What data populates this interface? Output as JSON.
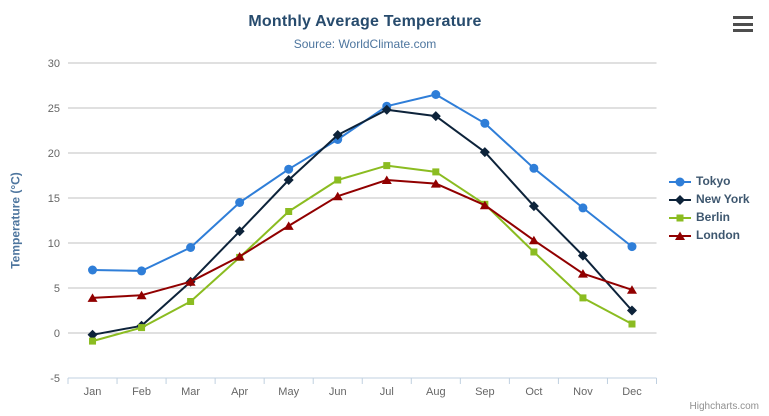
{
  "header": {
    "title": "Monthly Average Temperature",
    "subtitle": "Source: WorldClimate.com"
  },
  "credits_label": "Highcharts.com",
  "icons": {
    "context_menu": "hamburger-menu-icon"
  },
  "colors": {
    "title": "#274b6d",
    "subtitle": "#4d759e",
    "axis_title": "#4d759e",
    "tick_label": "#666666",
    "grid": "#C0C0C0",
    "axis_line": "#C0D0E0",
    "legend_text": "#3E576F",
    "credits": "#909090"
  },
  "chart_data": {
    "type": "line",
    "title": "Monthly Average Temperature",
    "subtitle": "Source: WorldClimate.com",
    "xlabel": "",
    "ylabel": "Temperature (°C)",
    "ylim": [
      -5,
      30
    ],
    "ytick_step": 5,
    "grid": true,
    "legend_position": "right",
    "categories": [
      "Jan",
      "Feb",
      "Mar",
      "Apr",
      "May",
      "Jun",
      "Jul",
      "Aug",
      "Sep",
      "Oct",
      "Nov",
      "Dec"
    ],
    "series": [
      {
        "name": "Tokyo",
        "color": "#2f7ed8",
        "marker": "circle",
        "values": [
          7.0,
          6.9,
          9.5,
          14.5,
          18.2,
          21.5,
          25.2,
          26.5,
          23.3,
          18.3,
          13.9,
          9.6
        ]
      },
      {
        "name": "New York",
        "color": "#0d233a",
        "marker": "diamond",
        "values": [
          -0.2,
          0.8,
          5.7,
          11.3,
          17.0,
          22.0,
          24.8,
          24.1,
          20.1,
          14.1,
          8.6,
          2.5
        ]
      },
      {
        "name": "Berlin",
        "color": "#8bbc21",
        "marker": "square",
        "values": [
          -0.9,
          0.6,
          3.5,
          8.4,
          13.5,
          17.0,
          18.6,
          17.9,
          14.3,
          9.0,
          3.9,
          1.0
        ]
      },
      {
        "name": "London",
        "color": "#910000",
        "marker": "triangle",
        "values": [
          3.9,
          4.2,
          5.7,
          8.5,
          11.9,
          15.2,
          17.0,
          16.6,
          14.2,
          10.3,
          6.6,
          4.8
        ]
      }
    ]
  }
}
